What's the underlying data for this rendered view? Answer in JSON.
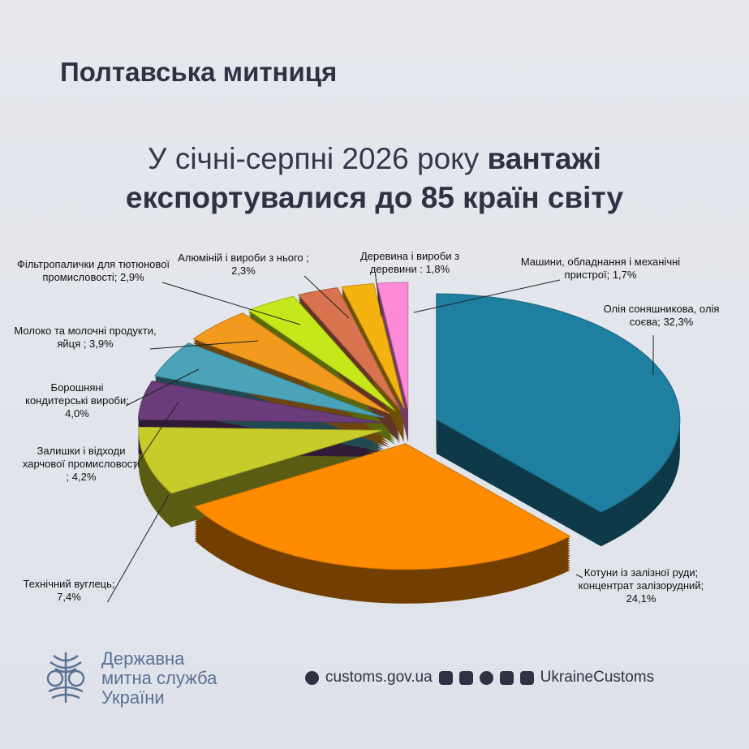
{
  "header": {
    "org": "Полтавська митниця",
    "title_regular": "У січні-серпні 2026 року",
    "title_bold": "вантажі експортувалися до 85 країн світу"
  },
  "chart_data": {
    "type": "pie",
    "categories": [
      "Олія соняшникова, олія соєва;",
      "Котуни із залізної руди; концентрат залізорудний;",
      "Технічний вуглець;",
      "Залишки і відходи харчової промисловості ;",
      "Борошняні кондитерські вироби;",
      "Молоко та молочні продукти, яйця ;",
      "Фільтропалички для тютюнової промисловості;",
      "Алюміній і вироби з нього ;",
      "Деревина і вироби з деревини :",
      "Машини, обладнання і механічні пристрої;"
    ],
    "values": [
      32.3,
      24.1,
      7.4,
      4.2,
      4.0,
      3.9,
      2.9,
      2.3,
      1.8,
      1.7
    ],
    "value_labels": [
      "32,3%",
      "24,1%",
      "7,4%",
      "4,2%",
      "4,0%",
      "3,9%",
      "2,9%",
      "2,3%",
      "1,8%",
      "1,7%"
    ],
    "colors": [
      "#1f7fa0",
      "#ff8c00",
      "#c8cc2a",
      "#6a3d7a",
      "#4aa3b8",
      "#f29a1e",
      "#c6e81a",
      "#d9734f",
      "#f5b30f",
      "#ff8ad8"
    ]
  },
  "footer": {
    "service": "Державна митна служба України",
    "site": "customs.gov.ua",
    "handle": "UkraineCustoms"
  }
}
